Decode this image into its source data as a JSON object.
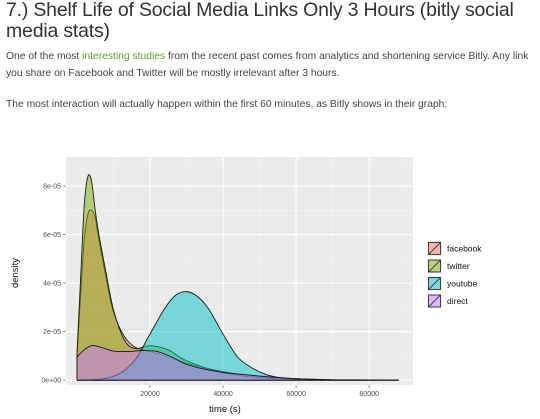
{
  "article": {
    "headline": "7.) Shelf Life of Social Media Links Only 3 Hours (bitly social media stats)",
    "paragraph1_before_link": "One of the most ",
    "paragraph1_link": "interesting studies",
    "paragraph1_after_link": " from the recent past comes from analytics and shortening service Bitly. Any link you share on Facebook and Twitter will be mostly irrelevant after 3 hours.",
    "paragraph2": "The most interaction will actually happen within the first 60 minutes, as Bitly shows in their graph:"
  },
  "chart_data": {
    "type": "area",
    "title": "",
    "xlabel": "time (s)",
    "ylabel": "density",
    "xlim": [
      -3000,
      92000
    ],
    "ylim": [
      -2e-06,
      9.2e-05
    ],
    "x_ticks": [
      20000,
      40000,
      60000,
      80000
    ],
    "x_tick_labels": [
      "20000",
      "40000",
      "60000",
      "80000"
    ],
    "y_ticks": [
      0,
      2e-05,
      4e-05,
      6e-05,
      8e-05
    ],
    "y_tick_labels": [
      "0e+00",
      "2e-05",
      "4e-05",
      "6e-05",
      "8e-05"
    ],
    "grid": true,
    "panel_background": "#ebebeb",
    "legend_position": "right",
    "series": [
      {
        "name": "facebook",
        "color": "#f8766d",
        "x": [
          0,
          1000,
          2000,
          3000,
          4000,
          5000,
          6000,
          8000,
          10000,
          13000,
          16000,
          20000,
          25000,
          30000,
          40000,
          50000,
          60000,
          70000,
          80000,
          88000
        ],
        "y": [
          1.02e-05,
          3.5e-05,
          5.8e-05,
          6.85e-05,
          7e-05,
          6.7e-05,
          5.8e-05,
          4.2e-05,
          2.8e-05,
          1.8e-05,
          1.35e-05,
          1.18e-05,
          9.5e-06,
          7e-06,
          3.5e-06,
          1.5e-06,
          6e-07,
          2e-07,
          1e-07,
          0
        ]
      },
      {
        "name": "twitter",
        "color": "#7cae00",
        "x": [
          0,
          1000,
          2000,
          3000,
          4000,
          5000,
          6000,
          8000,
          10000,
          13000,
          16000,
          20000,
          25000,
          30000,
          40000,
          50000,
          60000,
          70000,
          80000,
          88000
        ],
        "y": [
          1.05e-05,
          4.2e-05,
          7.2e-05,
          8.4e-05,
          8.2e-05,
          7e-05,
          6e-05,
          4.4e-05,
          2.9e-05,
          1.65e-05,
          1.3e-05,
          1.42e-05,
          1.25e-05,
          8e-06,
          3e-06,
          1e-06,
          4e-07,
          1e-07,
          0,
          0
        ]
      },
      {
        "name": "youtube",
        "color": "#00bfc4",
        "x": [
          0,
          4000,
          8000,
          12000,
          16000,
          20000,
          24000,
          27000,
          30000,
          33000,
          36000,
          40000,
          44000,
          48000,
          52000,
          56000,
          60000,
          65000,
          70000,
          75000,
          80000,
          85000,
          88000
        ],
        "y": [
          0,
          2e-07,
          8e-07,
          3e-06,
          8.5e-06,
          1.9e-05,
          2.95e-05,
          3.5e-05,
          3.65e-05,
          3.45e-05,
          2.95e-05,
          1.9e-05,
          9.5e-06,
          5e-06,
          2.2e-06,
          9e-07,
          3e-07,
          1e-07,
          0,
          0,
          0,
          0,
          0
        ]
      },
      {
        "name": "direct",
        "color": "#c77cff",
        "x": [
          0,
          2000,
          4000,
          6000,
          10000,
          14000,
          18000,
          22000,
          26000,
          30000,
          35000,
          40000,
          45000,
          50000,
          55000,
          60000,
          65000,
          70000,
          80000,
          88000
        ],
        "y": [
          9.5e-06,
          1.25e-05,
          1.42e-05,
          1.38e-05,
          1.2e-05,
          1.18e-05,
          1.22e-05,
          1.18e-05,
          9.5e-06,
          6.5e-06,
          4.5e-06,
          3.2e-06,
          2.4e-06,
          1.7e-06,
          1.1e-06,
          6e-07,
          3e-07,
          1e-07,
          0,
          0
        ]
      }
    ]
  }
}
